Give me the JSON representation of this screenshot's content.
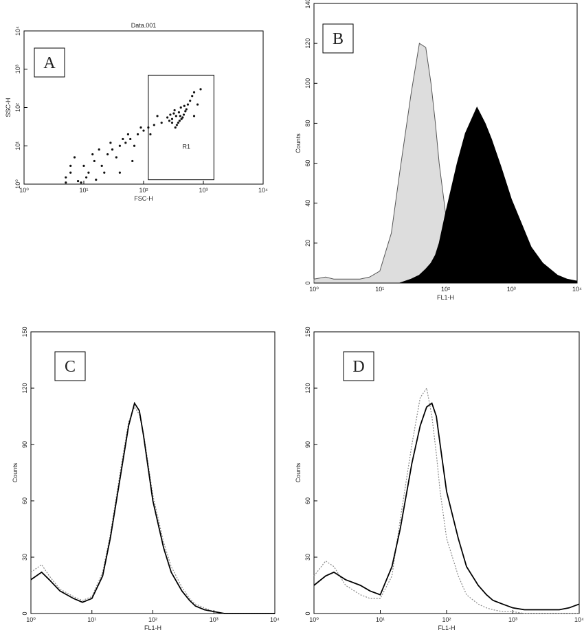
{
  "chart_data": [
    {
      "type": "scatter",
      "label": "A",
      "title": "Data.001",
      "x_label": "FSC-H",
      "y_label": "SSC-H",
      "xlog": true,
      "ylog": true,
      "xlim": [
        1,
        10000
      ],
      "ylim": [
        1,
        10000
      ],
      "xticks": [
        {
          "value": 1,
          "label": "10⁰"
        },
        {
          "value": 10,
          "label": "10¹"
        },
        {
          "value": 100,
          "label": "10²"
        },
        {
          "value": 1000,
          "label": "10³"
        },
        {
          "value": 10000,
          "label": "10⁴"
        }
      ],
      "yticks": [
        {
          "value": 1,
          "label": "10⁰"
        },
        {
          "value": 10,
          "label": "10¹"
        },
        {
          "value": 100,
          "label": "10²"
        },
        {
          "value": 1000,
          "label": "10³"
        },
        {
          "value": 10000,
          "label": "10⁴"
        }
      ],
      "color": "#111111",
      "x": [
        300,
        350,
        400,
        320,
        450,
        380,
        280,
        500,
        420,
        360,
        250,
        550,
        600,
        330,
        470,
        390,
        300,
        270,
        430,
        520,
        650,
        700,
        480,
        340,
        410,
        5,
        6,
        8,
        10,
        12,
        15,
        7,
        20,
        25,
        30,
        40,
        50,
        60,
        80,
        100,
        120,
        150,
        200,
        9,
        18,
        35,
        45,
        70,
        90,
        11,
        6,
        14,
        22,
        28,
        55,
        130,
        170,
        700,
        800,
        900,
        5,
        16,
        40,
        65
      ],
      "values": [
        50,
        60,
        45,
        70,
        55,
        40,
        65,
        80,
        100,
        35,
        55,
        120,
        150,
        85,
        65,
        75,
        40,
        45,
        50,
        90,
        200,
        250,
        110,
        30,
        60,
        1.5,
        2,
        1.2,
        3,
        2,
        4,
        5,
        3,
        6,
        8,
        10,
        12,
        15,
        20,
        25,
        30,
        35,
        40,
        1.1,
        8,
        5,
        15,
        10,
        30,
        1.5,
        3,
        6,
        2,
        12,
        20,
        20,
        60,
        60,
        120,
        300,
        1.1,
        1.3,
        2,
        4
      ],
      "gate": {
        "label": "R1",
        "xlim": [
          120,
          1500
        ],
        "ylim": [
          1.3,
          700
        ]
      }
    },
    {
      "type": "histogram",
      "label": "B",
      "x_label": "FL1-H",
      "y_label": "Counts",
      "xlog": true,
      "xlim": [
        1,
        10000
      ],
      "ylim": [
        0,
        140
      ],
      "xticks": [
        {
          "value": 1,
          "label": "10⁰"
        },
        {
          "value": 10,
          "label": "10¹"
        },
        {
          "value": 100,
          "label": "10²"
        },
        {
          "value": 1000,
          "label": "10³"
        },
        {
          "value": 10000,
          "label": "10⁴"
        }
      ],
      "yticks": [
        0,
        20,
        40,
        60,
        80,
        100,
        120,
        140
      ],
      "x": [
        1,
        1.5,
        2,
        3,
        5,
        7,
        10,
        15,
        20,
        30,
        40,
        50,
        60,
        70,
        80,
        100,
        150,
        200,
        300,
        400,
        500,
        700,
        1000,
        1500,
        2000,
        3000,
        5000,
        7000,
        10000
      ],
      "series": [
        {
          "color": "#555555",
          "fill": "#dddddd",
          "dashed": false,
          "values": [
            2,
            3,
            2,
            2,
            2,
            3,
            6,
            25,
            55,
            95,
            120,
            118,
            100,
            80,
            60,
            35,
            12,
            5,
            2,
            1,
            1,
            0,
            0,
            0,
            0,
            0,
            0,
            0,
            0
          ]
        },
        {
          "color": "#000000",
          "fill": "#000000",
          "dashed": false,
          "values": [
            0,
            0,
            0,
            0,
            0,
            0,
            0,
            0,
            0,
            2,
            4,
            7,
            10,
            14,
            20,
            35,
            60,
            75,
            88,
            80,
            72,
            58,
            42,
            28,
            18,
            10,
            4,
            2,
            1
          ]
        }
      ]
    },
    {
      "type": "histogram",
      "label": "C",
      "x_label": "FL1-H",
      "y_label": "Counts",
      "xlog": true,
      "xlim": [
        1,
        10000
      ],
      "ylim": [
        0,
        150
      ],
      "xticks": [
        {
          "value": 1,
          "label": "10⁰"
        },
        {
          "value": 10,
          "label": "10¹"
        },
        {
          "value": 100,
          "label": "10²"
        },
        {
          "value": 1000,
          "label": "10³"
        },
        {
          "value": 10000,
          "label": "10⁴"
        }
      ],
      "yticks": [
        0,
        30,
        60,
        90,
        120,
        150
      ],
      "x": [
        1,
        1.5,
        2,
        3,
        5,
        7,
        10,
        15,
        20,
        30,
        40,
        50,
        60,
        70,
        80,
        100,
        150,
        200,
        300,
        400,
        500,
        700,
        1000,
        1500,
        2000,
        3000,
        5000,
        7000,
        10000
      ],
      "series": [
        {
          "color": "#888888",
          "fill": "none",
          "dashed": true,
          "values": [
            22,
            26,
            20,
            13,
            9,
            7,
            9,
            22,
            42,
            78,
            102,
            110,
            106,
            96,
            84,
            63,
            38,
            25,
            14,
            8,
            5,
            3,
            1,
            0,
            0,
            0,
            0,
            0,
            0
          ]
        },
        {
          "color": "#000000",
          "fill": "none",
          "dashed": false,
          "values": [
            18,
            22,
            18,
            12,
            8,
            6,
            8,
            20,
            40,
            75,
            100,
            112,
            108,
            95,
            82,
            60,
            35,
            22,
            12,
            7,
            4,
            2,
            1,
            0,
            0,
            0,
            0,
            0,
            0
          ]
        }
      ]
    },
    {
      "type": "histogram",
      "label": "D",
      "x_label": "FL1-H",
      "y_label": "Counts",
      "xlog": true,
      "xlim": [
        1,
        10000
      ],
      "ylim": [
        0,
        150
      ],
      "xticks": [
        {
          "value": 1,
          "label": "10⁰"
        },
        {
          "value": 10,
          "label": "10¹"
        },
        {
          "value": 100,
          "label": "10²"
        },
        {
          "value": 1000,
          "label": "10³"
        },
        {
          "value": 10000,
          "label": "10⁴"
        }
      ],
      "yticks": [
        0,
        30,
        60,
        90,
        120,
        150
      ],
      "x": [
        1,
        1.5,
        2,
        3,
        5,
        7,
        10,
        15,
        20,
        30,
        40,
        50,
        60,
        70,
        80,
        100,
        150,
        200,
        300,
        400,
        500,
        700,
        1000,
        1500,
        2000,
        3000,
        5000,
        7000,
        10000
      ],
      "series": [
        {
          "color": "#888888",
          "fill": "none",
          "dashed": true,
          "values": [
            20,
            28,
            25,
            15,
            10,
            8,
            8,
            20,
            50,
            90,
            115,
            120,
            105,
            85,
            65,
            40,
            20,
            10,
            5,
            3,
            2,
            1,
            1,
            0,
            0,
            0,
            0,
            0,
            0
          ]
        },
        {
          "color": "#000000",
          "fill": "none",
          "dashed": false,
          "values": [
            15,
            20,
            22,
            18,
            15,
            12,
            10,
            25,
            45,
            80,
            100,
            110,
            112,
            105,
            90,
            65,
            40,
            25,
            15,
            10,
            7,
            5,
            3,
            2,
            2,
            2,
            2,
            3,
            5
          ]
        }
      ]
    }
  ]
}
